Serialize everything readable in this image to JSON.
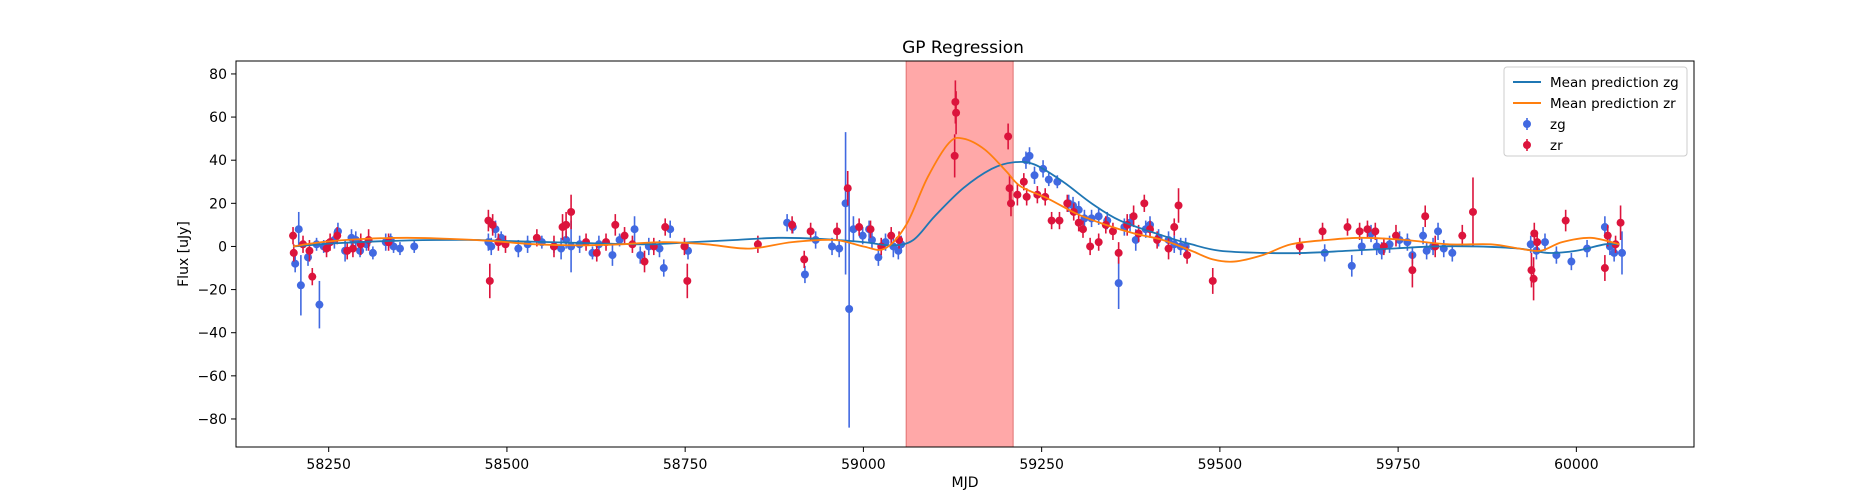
{
  "chart_data": {
    "type": "scatter",
    "title": "GP Regression",
    "xlabel": "MJD",
    "ylabel": "Flux [uJy]",
    "xlim": [
      58120,
      60165
    ],
    "ylim": [
      -93,
      86
    ],
    "xticks": [
      58250,
      58500,
      58750,
      59000,
      59250,
      59500,
      59750,
      60000
    ],
    "xtick_labels": [
      "58250",
      "58500",
      "58750",
      "59000",
      "59250",
      "59500",
      "59750",
      "60000"
    ],
    "yticks": [
      -80,
      -60,
      -40,
      -20,
      0,
      20,
      40,
      60,
      80
    ],
    "ytick_labels": [
      "−80",
      "−60",
      "−40",
      "−20",
      "0",
      "20",
      "40",
      "60",
      "80"
    ],
    "grid": false,
    "legend_position": "top-right",
    "shaded_region": {
      "x_start": 59060,
      "x_end": 59210,
      "color": "#ff9999"
    },
    "lines": [
      {
        "name": "Mean prediction zg",
        "color": "#1f77b4",
        "x": [
          58200,
          58260,
          58330,
          58400,
          58460,
          58500,
          58560,
          58620,
          58700,
          58760,
          58820,
          58880,
          58940,
          59000,
          59040,
          59070,
          59100,
          59140,
          59180,
          59210,
          59240,
          59280,
          59320,
          59360,
          59420,
          59460,
          59500,
          59560,
          59620,
          59680,
          59740,
          59800,
          59860,
          59920,
          59960,
          60000,
          60040,
          60060
        ],
        "y": [
          0,
          1.5,
          2.5,
          3,
          3,
          2.5,
          2,
          1.5,
          1,
          2,
          3,
          4,
          3.5,
          2,
          0.5,
          3,
          14,
          27,
          36,
          39,
          38,
          30,
          20,
          12,
          5,
          1,
          -2,
          -3,
          -3,
          -2,
          -1,
          0,
          0,
          -1,
          -3,
          -2,
          1,
          1
        ]
      },
      {
        "name": "Mean prediction zr",
        "color": "#ff7f0e",
        "x": [
          58200,
          58240,
          58300,
          58360,
          58420,
          58480,
          58540,
          58600,
          58660,
          58720,
          58780,
          58840,
          58900,
          58960,
          59000,
          59030,
          59060,
          59090,
          59120,
          59140,
          59170,
          59200,
          59220,
          59260,
          59300,
          59340,
          59380,
          59420,
          59460,
          59490,
          59520,
          59560,
          59600,
          59650,
          59700,
          59760,
          59820,
          59880,
          59920,
          59950,
          59980,
          60020,
          60060
        ],
        "y": [
          0,
          2,
          3.5,
          4,
          3.5,
          2.5,
          1,
          0.5,
          1,
          2,
          1,
          -1,
          2,
          3,
          0,
          -1,
          10,
          32,
          48,
          50,
          45,
          35,
          28,
          22,
          15,
          10,
          6,
          3,
          -2,
          -6,
          -7,
          -4,
          1,
          3,
          4,
          3,
          1,
          1,
          -1,
          -2,
          2,
          4,
          1
        ]
      }
    ],
    "series": [
      {
        "name": "zg",
        "color": "#4169e1",
        "marker": "circle",
        "points": [
          [
            58203,
            -8,
            4
          ],
          [
            58208,
            8,
            8
          ],
          [
            58211,
            -18,
            14
          ],
          [
            58221,
            -5,
            4
          ],
          [
            58233,
            1,
            3
          ],
          [
            58237,
            -27,
            11
          ],
          [
            58243,
            0,
            3
          ],
          [
            58258,
            3,
            4
          ],
          [
            58263,
            7,
            4
          ],
          [
            58273,
            -2,
            5
          ],
          [
            58282,
            4,
            4
          ],
          [
            58288,
            3,
            4
          ],
          [
            58294,
            -2,
            3
          ],
          [
            58303,
            1,
            3
          ],
          [
            58312,
            -3,
            3
          ],
          [
            58330,
            2,
            4
          ],
          [
            58337,
            3,
            3
          ],
          [
            58341,
            0,
            3
          ],
          [
            58350,
            -1,
            3
          ],
          [
            58370,
            0,
            3
          ],
          [
            58474,
            2,
            4
          ],
          [
            58478,
            0,
            4
          ],
          [
            58484,
            8,
            4
          ],
          [
            58492,
            4,
            3
          ],
          [
            58516,
            -1,
            4
          ],
          [
            58529,
            1,
            4
          ],
          [
            58549,
            2,
            3
          ],
          [
            58566,
            0,
            3
          ],
          [
            58576,
            -1,
            5
          ],
          [
            58583,
            3,
            4
          ],
          [
            58590,
            0,
            12
          ],
          [
            58602,
            1,
            4
          ],
          [
            58620,
            -3,
            3
          ],
          [
            58629,
            1,
            4
          ],
          [
            58648,
            -4,
            5
          ],
          [
            58658,
            3,
            3
          ],
          [
            58679,
            8,
            6
          ],
          [
            58687,
            -4,
            4
          ],
          [
            58699,
            0,
            4
          ],
          [
            58714,
            -1,
            4
          ],
          [
            58720,
            -10,
            4
          ],
          [
            58729,
            8,
            4
          ],
          [
            58754,
            -2,
            4
          ],
          [
            58893,
            11,
            4
          ],
          [
            58901,
            9,
            3
          ],
          [
            58918,
            -13,
            4
          ],
          [
            58933,
            3,
            4
          ],
          [
            58956,
            0,
            4
          ],
          [
            58966,
            -1,
            4
          ],
          [
            58975,
            20,
            33
          ],
          [
            58980,
            -29,
            55
          ],
          [
            58986,
            8,
            6
          ],
          [
            58999,
            5,
            4
          ],
          [
            59008,
            8,
            4
          ],
          [
            59012,
            3,
            4
          ],
          [
            59021,
            -5,
            4
          ],
          [
            59031,
            2,
            4
          ],
          [
            59042,
            0,
            5
          ],
          [
            59049,
            -2,
            4
          ],
          [
            59053,
            1,
            4
          ],
          [
            59228,
            40,
            4
          ],
          [
            59233,
            42,
            4
          ],
          [
            59240,
            33,
            4
          ],
          [
            59252,
            36,
            4
          ],
          [
            59260,
            31,
            3
          ],
          [
            59272,
            30,
            3
          ],
          [
            59288,
            20,
            4
          ],
          [
            59294,
            19,
            4
          ],
          [
            59302,
            17,
            4
          ],
          [
            59310,
            13,
            4
          ],
          [
            59320,
            13,
            4
          ],
          [
            59330,
            14,
            4
          ],
          [
            59342,
            12,
            4
          ],
          [
            59358,
            -17,
            12
          ],
          [
            59366,
            9,
            4
          ],
          [
            59374,
            11,
            4
          ],
          [
            59382,
            3,
            5
          ],
          [
            59396,
            8,
            4
          ],
          [
            59402,
            10,
            4
          ],
          [
            59414,
            4,
            4
          ],
          [
            59428,
            3,
            4
          ],
          [
            59436,
            1,
            4
          ],
          [
            59445,
            0,
            4
          ],
          [
            59452,
            0,
            4
          ],
          [
            59647,
            -3,
            4
          ],
          [
            59685,
            -9,
            5
          ],
          [
            59699,
            0,
            4
          ],
          [
            59712,
            6,
            4
          ],
          [
            59720,
            0,
            4
          ],
          [
            59727,
            -2,
            4
          ],
          [
            59738,
            1,
            4
          ],
          [
            59752,
            3,
            4
          ],
          [
            59763,
            2,
            4
          ],
          [
            59770,
            -4,
            4
          ],
          [
            59785,
            5,
            4
          ],
          [
            59790,
            -2,
            4
          ],
          [
            59799,
            0,
            4
          ],
          [
            59806,
            7,
            4
          ],
          [
            59814,
            -1,
            4
          ],
          [
            59826,
            -3,
            4
          ],
          [
            59936,
            1,
            4
          ],
          [
            59944,
            -2,
            4
          ],
          [
            59956,
            2,
            4
          ],
          [
            59972,
            -4,
            4
          ],
          [
            59993,
            -7,
            4
          ],
          [
            60015,
            -1,
            4
          ],
          [
            60040,
            9,
            5
          ],
          [
            60047,
            0,
            4
          ],
          [
            60053,
            -3,
            4
          ],
          [
            60064,
            -3,
            10
          ]
        ]
      },
      {
        "name": "zr",
        "color": "#dc143c",
        "marker": "circle",
        "points": [
          [
            58200,
            5,
            4
          ],
          [
            58201,
            -3,
            4
          ],
          [
            58214,
            1,
            4
          ],
          [
            58223,
            -2,
            5
          ],
          [
            58227,
            -14,
            4
          ],
          [
            58247,
            -1,
            4
          ],
          [
            58252,
            2,
            4
          ],
          [
            58262,
            5,
            4
          ],
          [
            58276,
            -2,
            4
          ],
          [
            58284,
            -1,
            4
          ],
          [
            58295,
            1,
            5
          ],
          [
            58306,
            3,
            5
          ],
          [
            58334,
            2,
            4
          ],
          [
            58474,
            12,
            5
          ],
          [
            58476,
            -16,
            8
          ],
          [
            58480,
            10,
            5
          ],
          [
            58488,
            2,
            4
          ],
          [
            58498,
            1,
            4
          ],
          [
            58542,
            4,
            4
          ],
          [
            58566,
            0,
            5
          ],
          [
            58578,
            9,
            6
          ],
          [
            58583,
            10,
            6
          ],
          [
            58590,
            16,
            8
          ],
          [
            58611,
            2,
            4
          ],
          [
            58626,
            -3,
            4
          ],
          [
            58639,
            2,
            4
          ],
          [
            58652,
            10,
            5
          ],
          [
            58665,
            5,
            4
          ],
          [
            58676,
            1,
            4
          ],
          [
            58693,
            -7,
            5
          ],
          [
            58706,
            0,
            4
          ],
          [
            58722,
            9,
            4
          ],
          [
            58749,
            0,
            4
          ],
          [
            58753,
            -16,
            8
          ],
          [
            58852,
            1,
            4
          ],
          [
            58900,
            10,
            4
          ],
          [
            58917,
            -6,
            4
          ],
          [
            58926,
            7,
            4
          ],
          [
            58963,
            7,
            4
          ],
          [
            58978,
            27,
            8
          ],
          [
            58994,
            9,
            4
          ],
          [
            59010,
            8,
            4
          ],
          [
            59025,
            0,
            4
          ],
          [
            59039,
            5,
            4
          ],
          [
            59050,
            3,
            4
          ],
          [
            59128,
            42,
            10
          ],
          [
            59129,
            67,
            10
          ],
          [
            59130,
            62,
            10
          ],
          [
            59203,
            51,
            6
          ],
          [
            59205,
            27,
            6
          ],
          [
            59207,
            20,
            6
          ],
          [
            59216,
            24,
            5
          ],
          [
            59225,
            30,
            4
          ],
          [
            59229,
            23,
            4
          ],
          [
            59244,
            24,
            4
          ],
          [
            59255,
            23,
            4
          ],
          [
            59264,
            12,
            4
          ],
          [
            59275,
            12,
            4
          ],
          [
            59286,
            20,
            4
          ],
          [
            59295,
            16,
            4
          ],
          [
            59302,
            11,
            4
          ],
          [
            59308,
            8,
            4
          ],
          [
            59318,
            0,
            4
          ],
          [
            59330,
            2,
            4
          ],
          [
            59340,
            10,
            4
          ],
          [
            59350,
            7,
            4
          ],
          [
            59358,
            -3,
            5
          ],
          [
            59370,
            10,
            5
          ],
          [
            59379,
            14,
            5
          ],
          [
            59386,
            6,
            4
          ],
          [
            59394,
            20,
            4
          ],
          [
            59402,
            8,
            4
          ],
          [
            59412,
            3,
            4
          ],
          [
            59428,
            -1,
            5
          ],
          [
            59436,
            9,
            4
          ],
          [
            59442,
            19,
            8
          ],
          [
            59454,
            -4,
            4
          ],
          [
            59490,
            -16,
            6
          ],
          [
            59612,
            0,
            4
          ],
          [
            59644,
            7,
            4
          ],
          [
            59679,
            9,
            4
          ],
          [
            59696,
            7,
            4
          ],
          [
            59707,
            8,
            4
          ],
          [
            59718,
            7,
            4
          ],
          [
            59730,
            0,
            4
          ],
          [
            59747,
            5,
            5
          ],
          [
            59770,
            -11,
            8
          ],
          [
            59788,
            14,
            5
          ],
          [
            59802,
            0,
            5
          ],
          [
            59840,
            5,
            5
          ],
          [
            59855,
            16,
            16
          ],
          [
            59937,
            -11,
            8
          ],
          [
            59940,
            -15,
            10
          ],
          [
            59941,
            6,
            5
          ],
          [
            59945,
            2,
            4
          ],
          [
            59985,
            12,
            5
          ],
          [
            60040,
            -10,
            6
          ],
          [
            60044,
            5,
            5
          ],
          [
            60055,
            1,
            4
          ],
          [
            60062,
            11,
            8
          ]
        ]
      }
    ],
    "legend_entries": [
      {
        "label": "Mean prediction zg",
        "kind": "line",
        "color": "#1f77b4"
      },
      {
        "label": "Mean prediction zr",
        "kind": "line",
        "color": "#ff7f0e"
      },
      {
        "label": "zg",
        "kind": "marker",
        "color": "#4169e1"
      },
      {
        "label": "zr",
        "kind": "marker",
        "color": "#dc143c"
      }
    ]
  }
}
